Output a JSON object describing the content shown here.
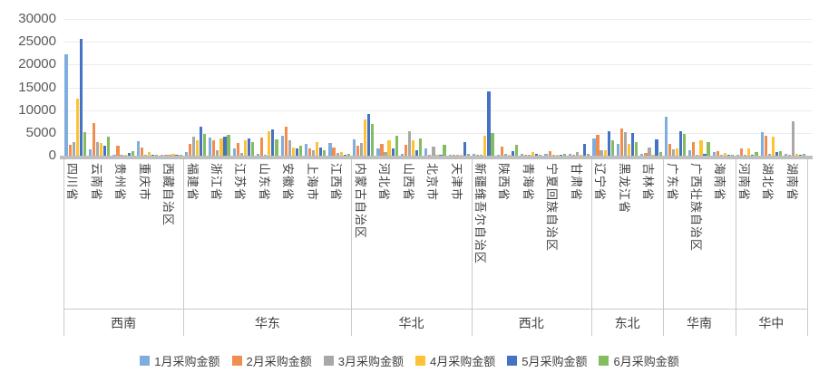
{
  "chart_data": {
    "type": "bar",
    "title": "",
    "xlabel": "",
    "ylabel": "",
    "ylim": [
      0,
      30000
    ],
    "yticks": [
      0,
      5000,
      10000,
      15000,
      20000,
      25000,
      30000
    ],
    "grid": true,
    "legend_position": "bottom",
    "series": [
      {
        "name": "1月采购金额",
        "color": "#7EADDE"
      },
      {
        "name": "2月采购金额",
        "color": "#EF8E4E"
      },
      {
        "name": "3月采购金额",
        "color": "#A8A8A8"
      },
      {
        "name": "4月采购金额",
        "color": "#FFC234"
      },
      {
        "name": "5月采购金额",
        "color": "#4472C4"
      },
      {
        "name": "6月采购金额",
        "color": "#84BC60"
      }
    ],
    "regions": [
      {
        "name": "西南",
        "provinces": [
          {
            "name": "四川省",
            "values": [
              22300,
              2300,
              2900,
              12600,
              25700,
              5200
            ]
          },
          {
            "name": "云南省",
            "values": [
              1400,
              7200,
              3000,
              2800,
              2250,
              4250
            ]
          },
          {
            "name": "贵州省",
            "values": [
              300,
              2200,
              200,
              300,
              550,
              950
            ]
          },
          {
            "name": "重庆市",
            "values": [
              3200,
              1700,
              200,
              850,
              300,
              200
            ]
          },
          {
            "name": "西藏自治区",
            "values": [
              100,
              150,
              300,
              450,
              100,
              150
            ]
          }
        ]
      },
      {
        "name": "华东",
        "provinces": [
          {
            "name": "福建省",
            "values": [
              900,
              2500,
              4250,
              3400,
              6350,
              4700
            ]
          },
          {
            "name": "浙江省",
            "values": [
              3900,
              3300,
              1200,
              3700,
              4200,
              4600
            ]
          },
          {
            "name": "江苏省",
            "values": [
              1500,
              2800,
              700,
              3300,
              3800,
              2900
            ]
          },
          {
            "name": "山东省",
            "values": [
              500,
              3900,
              300,
              5300,
              5800,
              3500
            ]
          },
          {
            "name": "安徽省",
            "values": [
              4400,
              6300,
              3300,
              1850,
              1500,
              2200
            ]
          },
          {
            "name": "上海市",
            "values": [
              2600,
              1500,
              1300,
              2900,
              1800,
              1300
            ]
          },
          {
            "name": "江西省",
            "values": [
              2800,
              1700,
              600,
              800,
              300,
              500
            ]
          }
        ]
      },
      {
        "name": "华北",
        "provinces": [
          {
            "name": "内蒙古自治区",
            "values": [
              3600,
              2200,
              2800,
              8000,
              9100,
              6900
            ]
          },
          {
            "name": "河北省",
            "values": [
              1500,
              2500,
              800,
              3400,
              1600,
              4400
            ]
          },
          {
            "name": "山西省",
            "values": [
              400,
              2400,
              5300,
              3400,
              1200,
              3700
            ]
          },
          {
            "name": "北京市",
            "values": [
              1500,
              300,
              1900,
              200,
              300,
              2400
            ]
          },
          {
            "name": "天津市",
            "values": [
              300,
              200,
              300,
              200,
              3000,
              400
            ]
          }
        ]
      },
      {
        "name": "西北",
        "provinces": [
          {
            "name": "新疆维吾尔自治区",
            "values": [
              500,
              200,
              200,
              4400,
              14200,
              5000
            ]
          },
          {
            "name": "陕西省",
            "values": [
              300,
              2000,
              400,
              300,
              1100,
              2400
            ]
          },
          {
            "name": "青海省",
            "values": [
              400,
              200,
              300,
              900,
              500,
              300
            ]
          },
          {
            "name": "宁夏回族自治区",
            "values": [
              400,
              1100,
              200,
              200,
              300,
              400
            ]
          },
          {
            "name": "甘肃省",
            "values": [
              500,
              300,
              900,
              300,
              2600,
              400
            ]
          }
        ]
      },
      {
        "name": "东北",
        "provinces": [
          {
            "name": "辽宁省",
            "values": [
              3800,
              4500,
              1300,
              1200,
              5400,
              3400
            ]
          },
          {
            "name": "黑龙江省",
            "values": [
              2500,
              6000,
              5200,
              2500,
              4900,
              3000
            ]
          },
          {
            "name": "吉林省",
            "values": [
              400,
              700,
              1700,
              300,
              3600,
              900
            ]
          }
        ]
      },
      {
        "name": "华南",
        "provinces": [
          {
            "name": "广东省",
            "values": [
              8600,
              2600,
              1400,
              1600,
              5400,
              4800
            ]
          },
          {
            "name": "广西壮族自治区",
            "values": [
              1300,
              2900,
              300,
              3400,
              500,
              2900
            ]
          },
          {
            "name": "海南省",
            "values": [
              900,
              1000,
              300,
              600,
              200,
              300
            ]
          }
        ]
      },
      {
        "name": "华中",
        "provinces": [
          {
            "name": "河南省",
            "values": [
              300,
              1600,
              300,
              1500,
              300,
              800
            ]
          },
          {
            "name": "湖北省",
            "values": [
              5100,
              4400,
              500,
              4200,
              800,
              1000
            ]
          },
          {
            "name": "湖南省",
            "values": [
              400,
              300,
              7500,
              400,
              300,
              400
            ]
          }
        ]
      }
    ]
  }
}
